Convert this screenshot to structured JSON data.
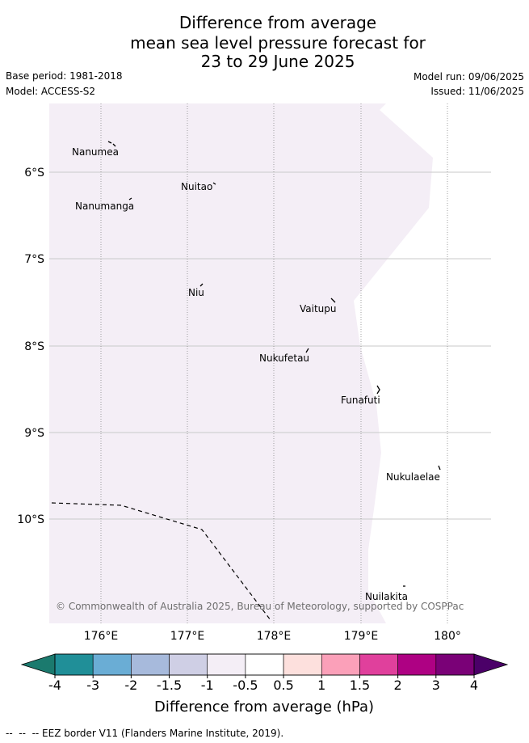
{
  "title": {
    "line1": "Difference from average",
    "line2": "mean sea level pressure forecast for",
    "line3": "23 to 29 June 2025"
  },
  "meta": {
    "base_period": "Base period: 1981-2018",
    "model": "Model: ACCESS-S2",
    "model_run": "Model run: 09/06/2025",
    "issued": "Issued: 11/06/2025"
  },
  "map": {
    "lat_labels": [
      "6°S",
      "7°S",
      "8°S",
      "9°S",
      "10°S"
    ],
    "lon_labels": [
      "176°E",
      "177°E",
      "178°E",
      "179°E",
      "180°"
    ],
    "shading_color": "#f4eef6",
    "islands": [
      {
        "name": "Nanumea",
        "lon": 176.09,
        "lat": -5.68
      },
      {
        "name": "Nuitao",
        "lon": 177.31,
        "lat": -6.11
      },
      {
        "name": "Nanumanga",
        "lon": 176.32,
        "lat": -6.29
      },
      {
        "name": "Niu",
        "lon": 177.16,
        "lat": -7.22
      },
      {
        "name": "Vaitupu",
        "lon": 178.68,
        "lat": -7.48
      },
      {
        "name": "Nukufetau",
        "lon": 178.37,
        "lat": -8.03
      },
      {
        "name": "Funafuti",
        "lon": 179.2,
        "lat": -8.52
      },
      {
        "name": "Nukulaelae",
        "lon": 179.83,
        "lat": -9.38
      },
      {
        "name": "Nuilakita",
        "lon": 179.48,
        "lat": -10.8
      }
    ],
    "copyright": "© Commonwealth of Australia 2025, Bureau of Meteorology, supported by COSPPac"
  },
  "colorbar": {
    "title": "Difference from average (hPa)",
    "ticks": [
      "-4",
      "-3",
      "-2",
      "-1.5",
      "-1",
      "-0.5",
      "0.5",
      "1",
      "1.5",
      "2",
      "3",
      "4"
    ],
    "low_color": "#1b7a6e",
    "high_color": "#4b0068",
    "colors": [
      "#208f98",
      "#6aadd5",
      "#a7badc",
      "#cfcfe5",
      "#f4eef6",
      "#ffffff",
      "#fde0dd",
      "#fba0b9",
      "#e0409c",
      "#ae0183",
      "#7a0177"
    ]
  },
  "footer": "--  --  -- EEZ border V11 (Flanders Marine Institute, 2019)."
}
